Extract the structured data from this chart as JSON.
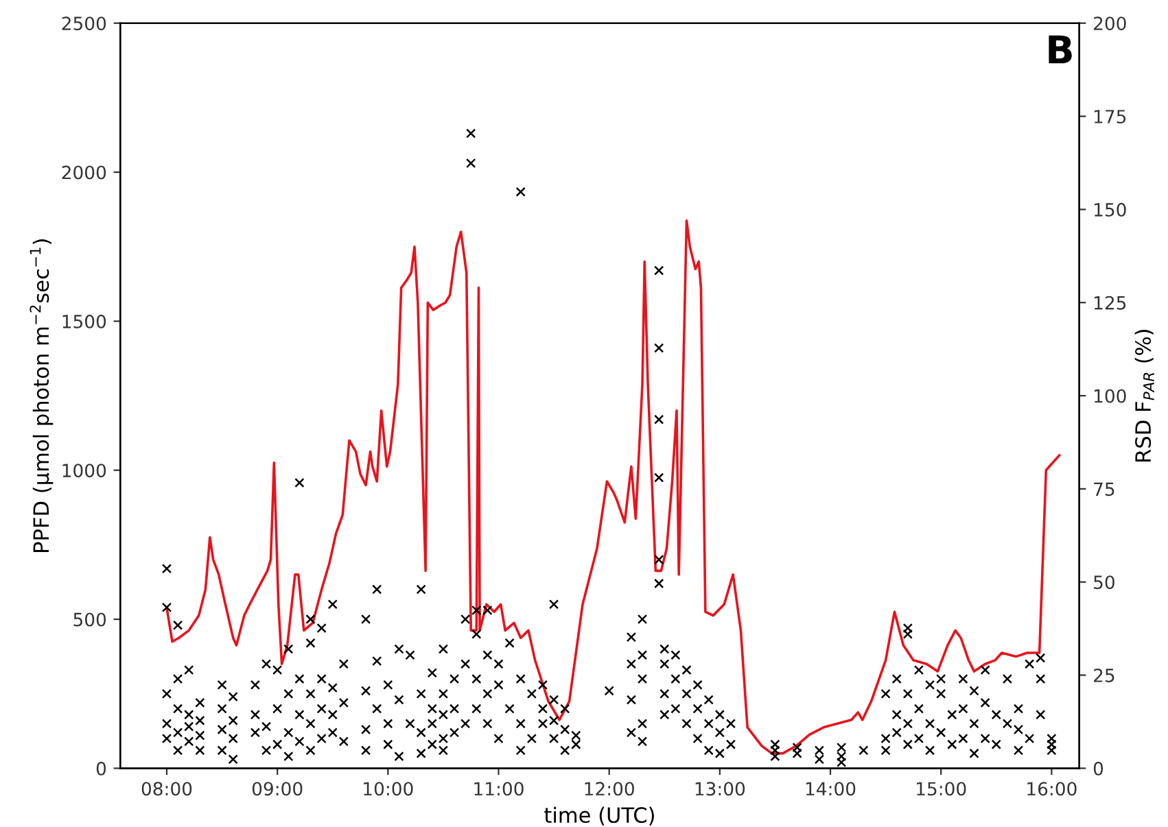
{
  "chart_data": {
    "type": "line",
    "xlabel": "time (UTC)",
    "ylabel": "PPFD (μmol photon m$^{−2}$sec$^{−1}$)",
    "y2label": "RSD F$_{PAR}$ (%)",
    "annotations": [
      "B"
    ],
    "xlim": [
      7.58,
      16.25
    ],
    "xticks": [
      {
        "value": 8,
        "label": "08:00"
      },
      {
        "value": 9,
        "label": "09:00"
      },
      {
        "value": 10,
        "label": "10:00"
      },
      {
        "value": 11,
        "label": "11:00"
      },
      {
        "value": 12,
        "label": "12:00"
      },
      {
        "value": 13,
        "label": "13:00"
      },
      {
        "value": 14,
        "label": "14:00"
      },
      {
        "value": 15,
        "label": "15:00"
      },
      {
        "value": 16,
        "label": "16:00"
      }
    ],
    "ylim": [
      0,
      2500
    ],
    "yticks": [
      0,
      500,
      1000,
      1500,
      2000,
      2500
    ],
    "y2lim": [
      0,
      200
    ],
    "y2ticks": [
      0,
      25,
      50,
      75,
      100,
      125,
      150,
      175,
      200
    ],
    "grid": false,
    "series": [
      {
        "type": "scatter",
        "color": "#000000",
        "marker": "cross",
        "x": [
          8.0,
          8.0,
          8.0,
          8.0,
          8.0,
          8.1,
          8.1,
          8.1,
          8.1,
          8.1,
          8.2,
          8.2,
          8.2,
          8.2,
          8.3,
          8.3,
          8.3,
          8.3,
          8.5,
          8.5,
          8.5,
          8.5,
          8.6,
          8.6,
          8.6,
          8.6,
          8.8,
          8.8,
          8.8,
          8.9,
          8.9,
          8.9,
          9.0,
          9.0,
          9.0,
          9.1,
          9.1,
          9.1,
          9.1,
          9.2,
          9.2,
          9.2,
          9.2,
          9.3,
          9.3,
          9.3,
          9.3,
          9.3,
          9.4,
          9.4,
          9.4,
          9.4,
          9.5,
          9.5,
          9.5,
          9.5,
          9.6,
          9.6,
          9.6,
          9.8,
          9.8,
          9.8,
          9.8,
          9.9,
          9.9,
          9.9,
          10.0,
          10.0,
          10.0,
          10.1,
          10.1,
          10.1,
          10.2,
          10.2,
          10.3,
          10.3,
          10.3,
          10.3,
          10.4,
          10.4,
          10.4,
          10.4,
          10.5,
          10.5,
          10.5,
          10.5,
          10.5,
          10.6,
          10.6,
          10.6,
          10.7,
          10.7,
          10.7,
          10.75,
          10.75,
          10.8,
          10.8,
          10.8,
          10.8,
          10.9,
          10.9,
          10.9,
          10.9,
          11.0,
          11.0,
          11.0,
          11.1,
          11.1,
          11.2,
          11.2,
          11.2,
          11.2,
          11.3,
          11.3,
          11.4,
          11.4,
          11.4,
          11.5,
          11.5,
          11.5,
          11.5,
          11.6,
          11.6,
          11.6,
          11.7,
          11.7,
          12.0,
          12.2,
          12.2,
          12.2,
          12.2,
          12.3,
          12.3,
          12.3,
          12.3,
          12.3,
          12.45,
          12.45,
          12.45,
          12.45,
          12.45,
          12.45,
          12.5,
          12.5,
          12.5,
          12.5,
          12.6,
          12.6,
          12.6,
          12.7,
          12.7,
          12.7,
          12.8,
          12.8,
          12.8,
          12.9,
          12.9,
          12.9,
          13.0,
          13.0,
          13.0,
          13.1,
          13.1,
          13.5,
          13.5,
          13.5,
          13.7,
          13.7,
          13.9,
          13.9,
          14.1,
          14.1,
          14.1,
          14.3,
          14.5,
          14.5,
          14.5,
          14.6,
          14.6,
          14.6,
          14.7,
          14.7,
          14.7,
          14.7,
          14.7,
          14.8,
          14.8,
          14.8,
          14.9,
          14.9,
          14.9,
          15.0,
          15.0,
          15.0,
          15.1,
          15.1,
          15.2,
          15.2,
          15.2,
          15.3,
          15.3,
          15.3,
          15.4,
          15.4,
          15.4,
          15.5,
          15.5,
          15.6,
          15.6,
          15.7,
          15.7,
          15.7,
          15.8,
          15.8,
          15.9,
          15.9,
          15.9,
          16.0,
          16.0,
          16.0
        ],
        "values": [
          670,
          540,
          150,
          250,
          100,
          200,
          120,
          60,
          300,
          480,
          180,
          90,
          140,
          330,
          220,
          110,
          60,
          160,
          130,
          60,
          200,
          280,
          100,
          160,
          30,
          240,
          180,
          280,
          120,
          140,
          60,
          350,
          80,
          200,
          330,
          120,
          250,
          400,
          40,
          958,
          300,
          180,
          90,
          250,
          420,
          150,
          60,
          500,
          200,
          300,
          100,
          470,
          180,
          270,
          120,
          550,
          350,
          90,
          220,
          260,
          500,
          130,
          60,
          600,
          200,
          360,
          150,
          80,
          280,
          400,
          230,
          40,
          150,
          380,
          600,
          120,
          250,
          50,
          80,
          200,
          320,
          150,
          100,
          250,
          400,
          180,
          60,
          120,
          300,
          200,
          500,
          350,
          150,
          2030,
          2130,
          450,
          300,
          200,
          530,
          380,
          250,
          150,
          530,
          280,
          100,
          350,
          420,
          200,
          1934,
          300,
          150,
          60,
          250,
          100,
          200,
          150,
          280,
          550,
          230,
          160,
          100,
          200,
          130,
          60,
          110,
          80,
          260,
          230,
          120,
          350,
          440,
          500,
          380,
          150,
          300,
          90,
          1670,
          1410,
          1170,
          975,
          700,
          620,
          400,
          250,
          350,
          180,
          300,
          200,
          380,
          250,
          150,
          330,
          200,
          100,
          280,
          150,
          60,
          230,
          120,
          50,
          180,
          80,
          150,
          60,
          40,
          80,
          50,
          70,
          30,
          60,
          40,
          20,
          70,
          60,
          100,
          250,
          60,
          300,
          180,
          120,
          470,
          450,
          250,
          150,
          80,
          330,
          200,
          100,
          280,
          150,
          60,
          250,
          120,
          300,
          180,
          80,
          300,
          200,
          100,
          260,
          150,
          50,
          220,
          100,
          330,
          180,
          80,
          300,
          150,
          200,
          60,
          130,
          350,
          100,
          370,
          300,
          180,
          100,
          60,
          80
        ]
      },
      {
        "axis": "y2",
        "color": "#e8141c",
        "x": [
          8.0,
          8.05,
          8.11,
          8.2,
          8.29,
          8.35,
          8.39,
          8.42,
          8.47,
          8.53,
          8.6,
          8.63,
          8.7,
          8.75,
          8.82,
          8.91,
          8.94,
          8.97,
          9.01,
          9.04,
          9.09,
          9.16,
          9.19,
          9.24,
          9.32,
          9.4,
          9.47,
          9.53,
          9.59,
          9.65,
          9.71,
          9.75,
          9.8,
          9.84,
          9.86,
          9.9,
          9.94,
          9.99,
          10.02,
          10.09,
          10.12,
          10.17,
          10.21,
          10.24,
          10.27,
          10.34,
          10.36,
          10.41,
          10.46,
          10.52,
          10.56,
          10.62,
          10.66,
          10.71,
          10.75,
          10.8,
          10.82,
          10.83,
          10.89,
          10.96,
          11.02,
          11.06,
          11.14,
          11.2,
          11.27,
          11.33,
          11.45,
          11.55,
          11.64,
          11.76,
          11.89,
          11.98,
          12.04,
          12.07,
          12.14,
          12.2,
          12.24,
          12.3,
          12.32,
          12.35,
          12.42,
          12.47,
          12.52,
          12.57,
          12.61,
          12.63,
          12.7,
          12.73,
          12.78,
          12.81,
          12.83,
          12.87,
          12.94,
          13.04,
          13.12,
          13.19,
          13.25,
          13.38,
          13.47,
          13.57,
          13.69,
          13.81,
          13.94,
          14.19,
          14.25,
          14.29,
          14.37,
          14.5,
          14.58,
          14.66,
          14.75,
          14.87,
          14.97,
          15.06,
          15.13,
          15.18,
          15.25,
          15.3,
          15.4,
          15.49,
          15.55,
          15.68,
          15.78,
          15.89,
          15.95,
          16.07
        ],
        "values": [
          43,
          34,
          35,
          37,
          41,
          48,
          62,
          56,
          52,
          44,
          35,
          33,
          41,
          44,
          48,
          53,
          56,
          82,
          44,
          28,
          33,
          52,
          52,
          37,
          39,
          48,
          55,
          63,
          68,
          88,
          85,
          79,
          76,
          85,
          81,
          77,
          96,
          81,
          85,
          103,
          129,
          131,
          133,
          140,
          125,
          53,
          125,
          123,
          124,
          125,
          127,
          140,
          144,
          133,
          37,
          37,
          129,
          37,
          44,
          42,
          44,
          37,
          39,
          35,
          37,
          29,
          18,
          13,
          18,
          44,
          59,
          77,
          74,
          72,
          66,
          81,
          67,
          103,
          136,
          103,
          53,
          53,
          59,
          77,
          96,
          52,
          147,
          140,
          134,
          136,
          129,
          42,
          41,
          44,
          52,
          37,
          11,
          6,
          4,
          4,
          6,
          9,
          11,
          13,
          15,
          13,
          18,
          29,
          42,
          33,
          29,
          28,
          26,
          33,
          37,
          35,
          29,
          26,
          28,
          29,
          31,
          30,
          31,
          31,
          80,
          84
        ]
      }
    ]
  }
}
